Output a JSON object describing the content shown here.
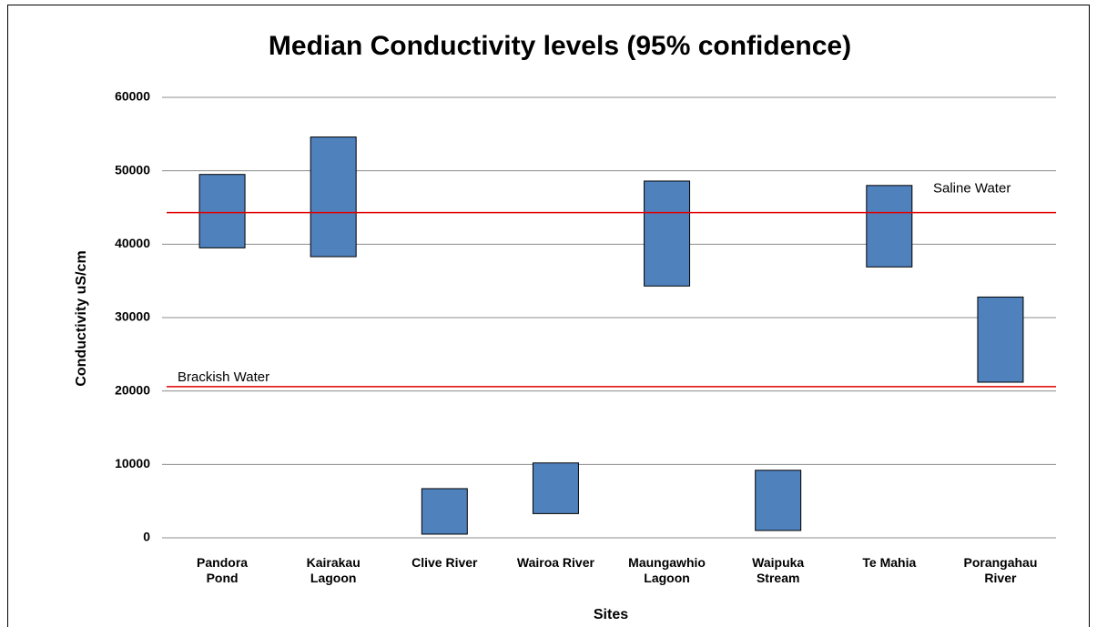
{
  "chart_data": {
    "type": "bar",
    "title": "Median Conductivity levels (95% confidence)",
    "x_label": "Sites",
    "y_label": "Conductivity uS/cm",
    "categories": [
      "Pandora\nPond",
      "Kairakau\nLagoon",
      "Clive River",
      "Wairoa River",
      "Maungawhio\nLagoon",
      "Waipuka\nStream",
      "Te Mahia",
      "Porangahau\nRiver"
    ],
    "low": [
      39500,
      38300,
      500,
      3300,
      34300,
      1000,
      36900,
      21200
    ],
    "high": [
      49500,
      54600,
      6700,
      10200,
      48600,
      9200,
      48000,
      32800
    ],
    "color": "#4f81bd",
    "ylim": [
      0,
      60000
    ],
    "yticks": [
      0,
      10000,
      20000,
      30000,
      40000,
      50000,
      60000
    ],
    "grid": true,
    "reference_lines": [
      {
        "label": "Saline Water",
        "value": 44300,
        "color": "#e00000"
      },
      {
        "label": "Brackish Water",
        "value": 20600,
        "color": "#e00000"
      }
    ]
  }
}
